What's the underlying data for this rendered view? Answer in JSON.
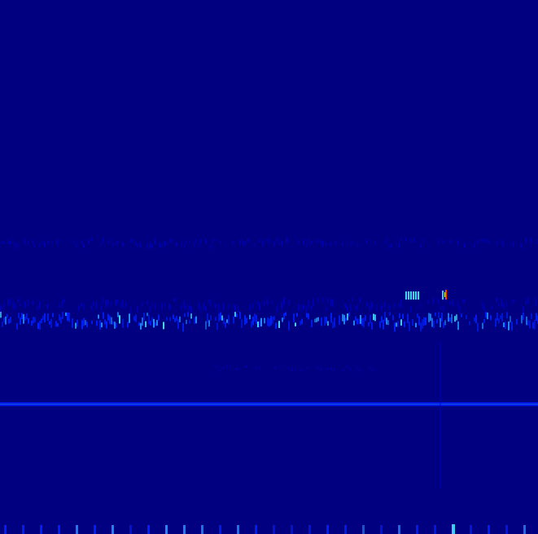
{
  "image": {
    "kind": "spectrogram",
    "colormap": "jet",
    "background_color": "#000080",
    "colors": {
      "faint": "#0000c8",
      "mid": "#0020ff",
      "bright": "#2090ff",
      "cyan": "#40e0ff",
      "hot": "#ff4000",
      "yellow": "#ffff40"
    }
  }
}
